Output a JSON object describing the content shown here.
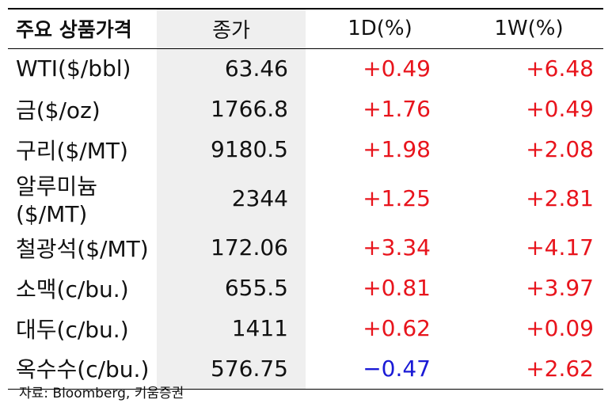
{
  "table": {
    "headers": [
      "주요 상품가격",
      "종가",
      "1D(%)",
      "1W(%)"
    ],
    "rows": [
      {
        "name": "WTI($/bbl)",
        "close": "63.46",
        "d1": "+0.49",
        "w1": "+6.48"
      },
      {
        "name": "금($/oz)",
        "close": "1766.8",
        "d1": "+1.76",
        "w1": "+0.49"
      },
      {
        "name": "구리($/MT)",
        "close": "9180.5",
        "d1": "+1.98",
        "w1": "+2.08"
      },
      {
        "name": "알루미늄($/MT)",
        "close": "2344",
        "d1": "+1.25",
        "w1": "+2.81"
      },
      {
        "name": "철광석($/MT)",
        "close": "172.06",
        "d1": "+3.34",
        "w1": "+4.17"
      },
      {
        "name": "소맥(c/bu.)",
        "close": "655.5",
        "d1": "+0.81",
        "w1": "+3.97"
      },
      {
        "name": "대두(c/bu.)",
        "close": "1411",
        "d1": "+0.62",
        "w1": "+0.09"
      },
      {
        "name": "옥수수(c/bu.)",
        "close": "576.75",
        "d1": "−0.47",
        "w1": "+2.62"
      }
    ]
  },
  "source": "자료: Bloomberg, 키움증권",
  "colors": {
    "positive": "#e8141c",
    "negative": "#1a1ad6",
    "shade": "#efefef"
  }
}
